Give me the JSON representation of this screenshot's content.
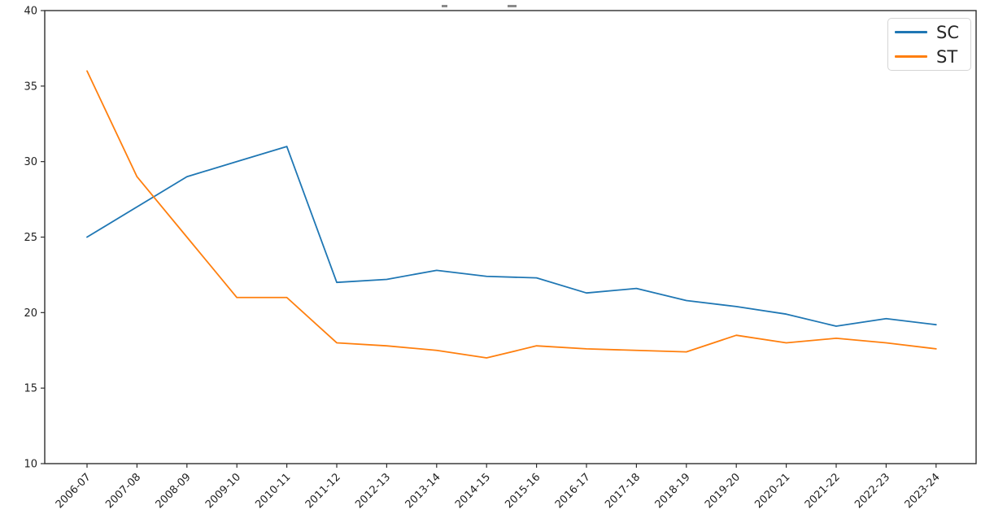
{
  "figure": {
    "background": "#ffffff",
    "note_cropped_title": "title text cut off at top edge; only two tiny gray fragments visible"
  },
  "chart_data": {
    "type": "line",
    "title": "",
    "xlabel": "",
    "ylabel": "",
    "categories": [
      "2006-07",
      "2007-08",
      "2008-09",
      "2009-10",
      "2010-11",
      "2011-12",
      "2012-13",
      "2013-14",
      "2014-15",
      "2015-16",
      "2016-17",
      "2017-18",
      "2018-19",
      "2019-20",
      "2020-21",
      "2021-22",
      "2022-23",
      "2023-24"
    ],
    "series": [
      {
        "name": "SC",
        "color": "#1f77b4",
        "values": [
          25,
          27,
          29,
          30,
          31,
          22,
          22.2,
          22.8,
          22.4,
          22.3,
          21.3,
          21.6,
          20.8,
          20.4,
          19.9,
          19.1,
          19.6,
          19.2
        ]
      },
      {
        "name": "ST",
        "color": "#ff7f0e",
        "values": [
          36,
          29,
          25,
          21,
          21,
          18,
          17.8,
          17.5,
          17,
          17.8,
          17.6,
          17.5,
          17.4,
          18.5,
          18,
          18.3,
          18,
          17.6
        ]
      }
    ],
    "ylim": [
      10,
      40
    ],
    "yticks": [
      10,
      15,
      20,
      25,
      30,
      35,
      40
    ],
    "xtick_rotation_deg": 45,
    "grid": false,
    "legend_position": "upper-right",
    "axis_color": "#2e2e2e",
    "tick_label_color": "#1f1f1f",
    "line_width": 1.8
  }
}
